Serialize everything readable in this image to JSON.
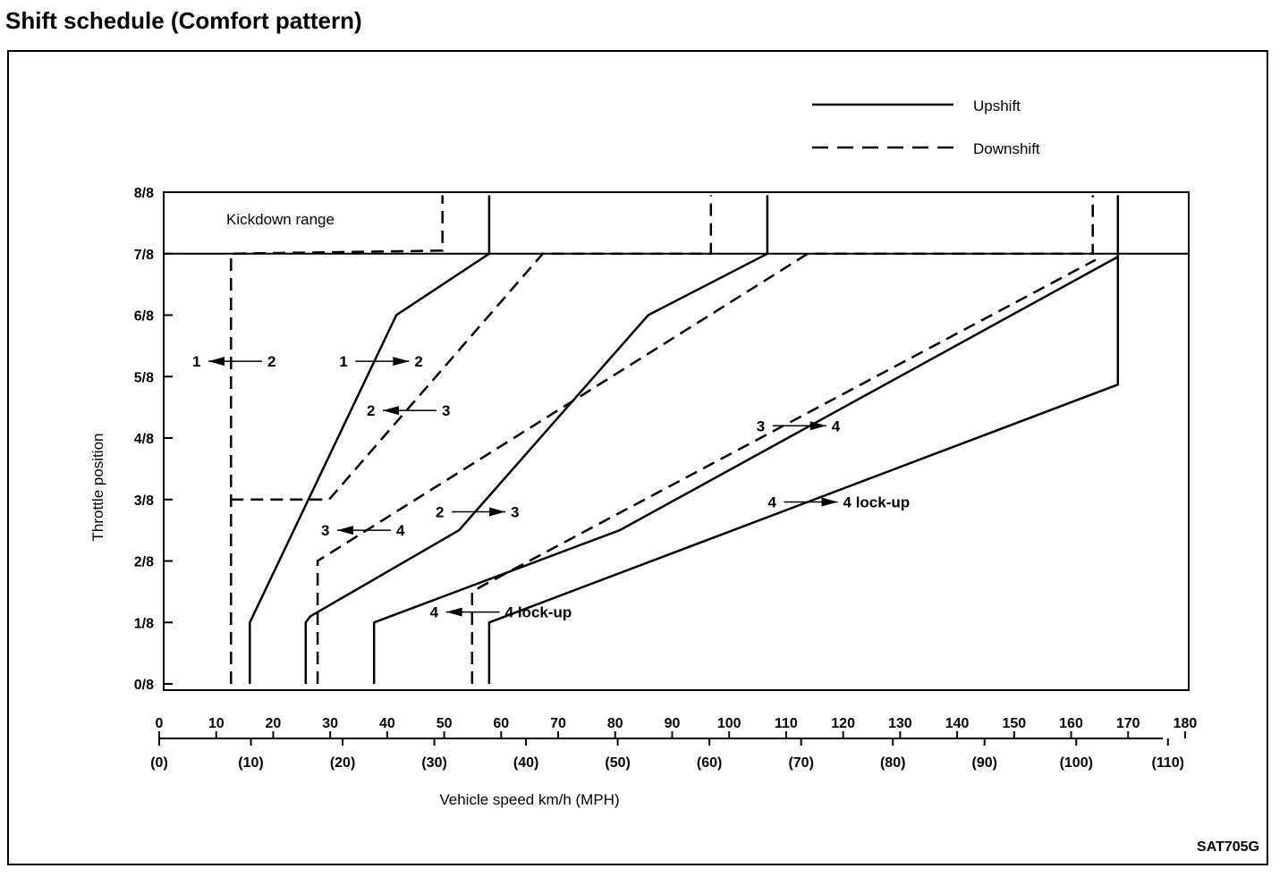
{
  "title": "Shift schedule (Comfort pattern)",
  "figure_code": "SAT705G",
  "chart_data": {
    "type": "line",
    "title": "Shift schedule (Comfort pattern)",
    "xlabel": "Vehicle speed km/h (MPH)",
    "ylabel": "Throttle position",
    "xlim": [
      0,
      180
    ],
    "ylim": [
      0,
      8
    ],
    "x_ticks_kmh": [
      "0",
      "10",
      "20",
      "30",
      "40",
      "50",
      "60",
      "70",
      "80",
      "90",
      "100",
      "110",
      "120",
      "130",
      "140",
      "150",
      "160",
      "170",
      "180"
    ],
    "x_ticks_mph": [
      "(0)",
      "(10)",
      "(20)",
      "(30)",
      "(40)",
      "(50)",
      "(60)",
      "(70)",
      "(80)",
      "(90)",
      "(100)",
      "(110)"
    ],
    "y_ticks": [
      "0/8",
      "1/8",
      "2/8",
      "3/8",
      "4/8",
      "5/8",
      "6/8",
      "7/8",
      "8/8"
    ],
    "legend": [
      {
        "label": "Upshift",
        "style": "solid"
      },
      {
        "label": "Downshift",
        "style": "dashed"
      }
    ],
    "legend_position": "top-right",
    "region_label": "Kickdown range",
    "series": [
      {
        "name": "1-2 upshift",
        "style": "solid",
        "points": [
          [
            15.9,
            0
          ],
          [
            15.9,
            1
          ],
          [
            41.6,
            6
          ],
          [
            57.9,
            7
          ],
          [
            57.9,
            7.95
          ]
        ]
      },
      {
        "name": "2-3 upshift",
        "style": "solid",
        "points": [
          [
            25.7,
            0
          ],
          [
            25.7,
            1
          ],
          [
            26.5,
            1.1
          ],
          [
            52.6,
            2.5
          ],
          [
            85.8,
            6
          ],
          [
            106.7,
            7
          ],
          [
            106.7,
            7.95
          ]
        ]
      },
      {
        "name": "3-4 upshift",
        "style": "solid",
        "points": [
          [
            37.7,
            0
          ],
          [
            37.7,
            1
          ],
          [
            80.8,
            2.5
          ],
          [
            168.2,
            6.95
          ],
          [
            168.2,
            7.95
          ]
        ]
      },
      {
        "name": "4 lock-up on",
        "style": "solid",
        "points": [
          [
            57.9,
            0
          ],
          [
            57.9,
            1
          ],
          [
            168.2,
            4.87
          ],
          [
            168.2,
            6.95
          ]
        ]
      },
      {
        "name": "2-1 downshift",
        "style": "dashed",
        "points": [
          [
            12.6,
            0
          ],
          [
            12.6,
            7
          ],
          [
            49.7,
            7.05
          ],
          [
            49.7,
            7.95
          ]
        ]
      },
      {
        "name": "3-2 downshift",
        "style": "dashed",
        "points": [
          [
            12.6,
            3
          ],
          [
            29.8,
            3
          ],
          [
            67.3,
            7
          ],
          [
            96.8,
            7
          ],
          [
            96.8,
            7.95
          ]
        ]
      },
      {
        "name": "4-3 downshift",
        "style": "dashed",
        "points": [
          [
            27.8,
            0
          ],
          [
            27.8,
            2
          ],
          [
            113.8,
            7
          ],
          [
            163.8,
            7
          ],
          [
            163.8,
            7.95
          ]
        ]
      },
      {
        "name": "4 lock-up off",
        "style": "dashed",
        "points": [
          [
            54.9,
            0
          ],
          [
            54.9,
            1.5
          ],
          [
            56.8,
            1.6
          ],
          [
            164.3,
            6.9
          ]
        ]
      }
    ],
    "annotations": [
      {
        "from": "1",
        "to": "2",
        "dir": "left",
        "at": [
          5.8,
          5.25
        ]
      },
      {
        "from": "1",
        "to": "2",
        "dir": "right",
        "at": [
          31.6,
          5.25
        ]
      },
      {
        "from": "2",
        "to": "3",
        "dir": "left",
        "at": [
          36.4,
          4.45
        ]
      },
      {
        "from": "3",
        "to": "4",
        "dir": "left",
        "at": [
          28.4,
          2.5
        ]
      },
      {
        "from": "2",
        "to": "3",
        "dir": "right",
        "at": [
          48.5,
          2.8
        ]
      },
      {
        "from": "3",
        "to": "4",
        "dir": "right",
        "at": [
          104.8,
          4.2
        ]
      },
      {
        "from": "4",
        "to": "4 lock-up",
        "dir": "right",
        "at": [
          106.8,
          2.96
        ]
      },
      {
        "from": "4",
        "to": "4 lock-up",
        "dir": "left",
        "at": [
          47.5,
          1.17
        ]
      }
    ]
  }
}
